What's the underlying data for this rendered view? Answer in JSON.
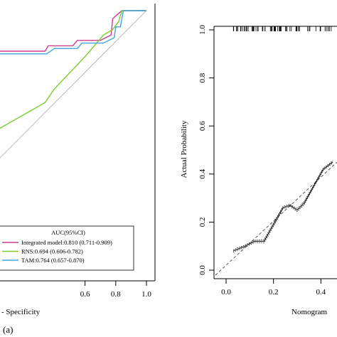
{
  "figure": {
    "panel_label": "(a)"
  },
  "chart_data": [
    {
      "type": "line",
      "subtype": "roc",
      "xlabel": "- Specificity",
      "x_ticks": [
        "0.6",
        "0.8",
        "1.0"
      ],
      "xlim": [
        0,
        1
      ],
      "ylim": [
        0,
        1
      ],
      "legend": {
        "title": "AUC(95%CI)",
        "placement": "bottom-right"
      },
      "reference_line": true,
      "series": [
        {
          "name": "Integrated model:0.810 (0.711-0.909)",
          "color": "#cc3d8a",
          "x": [
            0,
            0.34,
            0.36,
            0.52,
            0.55,
            0.7,
            0.77,
            0.78,
            0.84,
            1.0
          ],
          "y": [
            0.85,
            0.85,
            0.87,
            0.87,
            0.89,
            0.89,
            0.91,
            0.97,
            1.0,
            1.0
          ]
        },
        {
          "name": "RNS:0.694 (0.606-0.782)",
          "color": "#7ccc2d",
          "x": [
            0,
            0.34,
            0.4,
            0.6,
            0.66,
            0.72,
            0.78,
            0.82,
            0.84,
            1.0
          ],
          "y": [
            0.55,
            0.66,
            0.71,
            0.83,
            0.87,
            0.91,
            0.93,
            0.96,
            1.0,
            1.0
          ]
        },
        {
          "name": "TAM:0.764 (0.657-0.870)",
          "color": "#3fa3e8",
          "x": [
            0,
            0.35,
            0.4,
            0.55,
            0.58,
            0.72,
            0.79,
            0.8,
            0.83,
            0.85,
            1.0
          ],
          "y": [
            0.84,
            0.84,
            0.86,
            0.86,
            0.88,
            0.88,
            0.9,
            0.94,
            0.94,
            1.0,
            1.0
          ]
        }
      ]
    },
    {
      "type": "line",
      "subtype": "calibration",
      "ylabel": "Actual Probability",
      "xlabel": "Nomogram",
      "x_ticks": [
        "0.0",
        "0.2",
        "0.4"
      ],
      "y_ticks": [
        "0.0",
        "0.2",
        "0.4",
        "0.6",
        "0.8",
        "1.0"
      ],
      "xlim": [
        0,
        0.45
      ],
      "ylim": [
        0,
        1.0
      ],
      "rug": true,
      "reference_line": true,
      "series": [
        {
          "style": "solid",
          "x": [
            0.03,
            0.08,
            0.12,
            0.16,
            0.2,
            0.24,
            0.27,
            0.3,
            0.33,
            0.37,
            0.41,
            0.45
          ],
          "y": [
            0.08,
            0.1,
            0.12,
            0.12,
            0.19,
            0.26,
            0.27,
            0.25,
            0.28,
            0.35,
            0.42,
            0.45
          ]
        },
        {
          "style": "dotted",
          "x": [
            0.03,
            0.08,
            0.12,
            0.16,
            0.2,
            0.24,
            0.27,
            0.3,
            0.33,
            0.37,
            0.41,
            0.45
          ],
          "y": [
            0.075,
            0.095,
            0.115,
            0.113,
            0.182,
            0.255,
            0.265,
            0.244,
            0.273,
            0.345,
            0.415,
            0.445
          ]
        },
        {
          "style": "dotted",
          "x": [
            0.03,
            0.08,
            0.12,
            0.16,
            0.2,
            0.24,
            0.27,
            0.3,
            0.33,
            0.37,
            0.41,
            0.45
          ],
          "y": [
            0.085,
            0.105,
            0.125,
            0.127,
            0.198,
            0.265,
            0.275,
            0.256,
            0.287,
            0.355,
            0.425,
            0.455
          ]
        }
      ]
    }
  ]
}
